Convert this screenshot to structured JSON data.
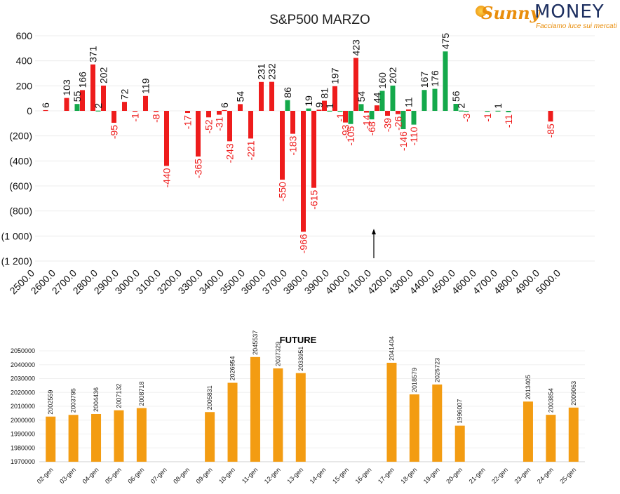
{
  "logo": {
    "word1": "Sunny",
    "word2": "MONEY",
    "tagline": "Facciamo luce sui mercati"
  },
  "colors": {
    "positive": "#14a94b",
    "negative": "#ee1c1c",
    "future_bar": "#f39c12"
  },
  "chart_data": [
    {
      "type": "bar",
      "title": "S&P500 MARZO",
      "xlabel": "",
      "ylabel": "",
      "ylim": [
        -1200,
        600
      ],
      "y_ticks": [
        600,
        400,
        200,
        0,
        -200,
        -400,
        -600,
        -800,
        -1000,
        -1200
      ],
      "y_tick_labels": [
        "600",
        "400",
        "200",
        "0",
        "(200)",
        "(400)",
        "(600)",
        "(800)",
        "(1 000)",
        "(1 200)"
      ],
      "xlim": [
        2500,
        5000
      ],
      "x_ticks": [
        "2500.0",
        "2600.0",
        "2700.0",
        "2800.0",
        "2900.0",
        "3000.0",
        "3100.0",
        "3200.0",
        "3300.0",
        "3400.0",
        "3500.0",
        "3600.0",
        "3700.0",
        "3800.0",
        "3900.0",
        "4000.0",
        "4100.0",
        "4200.0",
        "4300.0",
        "4400.0",
        "4500.0",
        "4600.0",
        "4700.0",
        "4800.0",
        "4900.0",
        "5000.0"
      ],
      "annotation": "arrow marker near strike 4100",
      "bars": [
        {
          "x": 2550,
          "value": 6,
          "color": "red"
        },
        {
          "x": 2650,
          "value": 103,
          "color": "red"
        },
        {
          "x": 2700,
          "value": 55,
          "color": "green"
        },
        {
          "x": 2725,
          "value": 166,
          "color": "red"
        },
        {
          "x": 2775,
          "value": 371,
          "color": "red"
        },
        {
          "x": 2800,
          "value": 2,
          "color": "green"
        },
        {
          "x": 2825,
          "value": 202,
          "color": "red"
        },
        {
          "x": 2875,
          "value": -95,
          "color": "red"
        },
        {
          "x": 2925,
          "value": 72,
          "color": "red"
        },
        {
          "x": 2975,
          "value": -1,
          "color": "red"
        },
        {
          "x": 3025,
          "value": 119,
          "color": "red"
        },
        {
          "x": 3075,
          "value": -8,
          "color": "red"
        },
        {
          "x": 3125,
          "value": -440,
          "color": "red"
        },
        {
          "x": 3225,
          "value": -17,
          "color": "red"
        },
        {
          "x": 3275,
          "value": -365,
          "color": "red"
        },
        {
          "x": 3325,
          "value": -52,
          "color": "red"
        },
        {
          "x": 3375,
          "value": -31,
          "color": "red"
        },
        {
          "x": 3400,
          "value": 6,
          "color": "red"
        },
        {
          "x": 3425,
          "value": -243,
          "color": "red"
        },
        {
          "x": 3475,
          "value": 54,
          "color": "red"
        },
        {
          "x": 3525,
          "value": -221,
          "color": "red"
        },
        {
          "x": 3575,
          "value": 231,
          "color": "red"
        },
        {
          "x": 3625,
          "value": 232,
          "color": "red"
        },
        {
          "x": 3675,
          "value": -550,
          "color": "red"
        },
        {
          "x": 3700,
          "value": 86,
          "color": "green"
        },
        {
          "x": 3725,
          "value": -183,
          "color": "red"
        },
        {
          "x": 3775,
          "value": -966,
          "color": "red"
        },
        {
          "x": 3800,
          "value": 19,
          "color": "green"
        },
        {
          "x": 3825,
          "value": -615,
          "color": "red"
        },
        {
          "x": 3850,
          "value": 9,
          "color": "red"
        },
        {
          "x": 3875,
          "value": 81,
          "color": "red"
        },
        {
          "x": 3900,
          "value": 1,
          "color": "green"
        },
        {
          "x": 3925,
          "value": 197,
          "color": "red"
        },
        {
          "x": 3950,
          "value": -1,
          "color": "green"
        },
        {
          "x": 3975,
          "value": -93,
          "color": "red"
        },
        {
          "x": 4000,
          "value": -105,
          "color": "green"
        },
        {
          "x": 4025,
          "value": 423,
          "color": "red"
        },
        {
          "x": 4050,
          "value": 54,
          "color": "green"
        },
        {
          "x": 4075,
          "value": -14,
          "color": "red"
        },
        {
          "x": 4100,
          "value": -68,
          "color": "green"
        },
        {
          "x": 4125,
          "value": 44,
          "color": "red"
        },
        {
          "x": 4150,
          "value": 160,
          "color": "green"
        },
        {
          "x": 4175,
          "value": -39,
          "color": "red"
        },
        {
          "x": 4200,
          "value": 202,
          "color": "green"
        },
        {
          "x": 4225,
          "value": -26,
          "color": "red"
        },
        {
          "x": 4250,
          "value": -146,
          "color": "green"
        },
        {
          "x": 4275,
          "value": 11,
          "color": "red"
        },
        {
          "x": 4300,
          "value": -110,
          "color": "green"
        },
        {
          "x": 4350,
          "value": 167,
          "color": "green"
        },
        {
          "x": 4400,
          "value": 176,
          "color": "green"
        },
        {
          "x": 4450,
          "value": 475,
          "color": "green"
        },
        {
          "x": 4500,
          "value": 56,
          "color": "green"
        },
        {
          "x": 4525,
          "value": 2,
          "color": "green"
        },
        {
          "x": 4550,
          "value": -3,
          "color": "green"
        },
        {
          "x": 4650,
          "value": -1,
          "color": "green"
        },
        {
          "x": 4700,
          "value": 1,
          "color": "green"
        },
        {
          "x": 4750,
          "value": -11,
          "color": "green"
        },
        {
          "x": 4950,
          "value": -85,
          "color": "red"
        }
      ]
    },
    {
      "type": "bar",
      "title": "FUTURE",
      "xlabel": "",
      "ylabel": "",
      "ylim": [
        1970000,
        2050000
      ],
      "y_ticks": [
        1970000,
        1980000,
        1990000,
        2000000,
        2010000,
        2020000,
        2030000,
        2040000,
        2050000
      ],
      "categories": [
        "02-gen",
        "03-gen",
        "04-gen",
        "05-gen",
        "06-gen",
        "07-gen",
        "08-gen",
        "09-gen",
        "10-gen",
        "11-gen",
        "12-gen",
        "13-gen",
        "14-gen",
        "15-gen",
        "16-gen",
        "17-gen",
        "18-gen",
        "19-gen",
        "20-gen",
        "21-gen",
        "22-gen",
        "23-gen",
        "24-gen",
        "25-gen"
      ],
      "values": [
        2002559,
        2003795,
        2004436,
        2007132,
        2008718,
        null,
        null,
        2005831,
        2026954,
        2045537,
        2037329,
        2033951,
        null,
        null,
        null,
        2041404,
        2018579,
        2025723,
        1996007,
        null,
        null,
        2013405,
        2003854,
        2009063
      ]
    }
  ]
}
